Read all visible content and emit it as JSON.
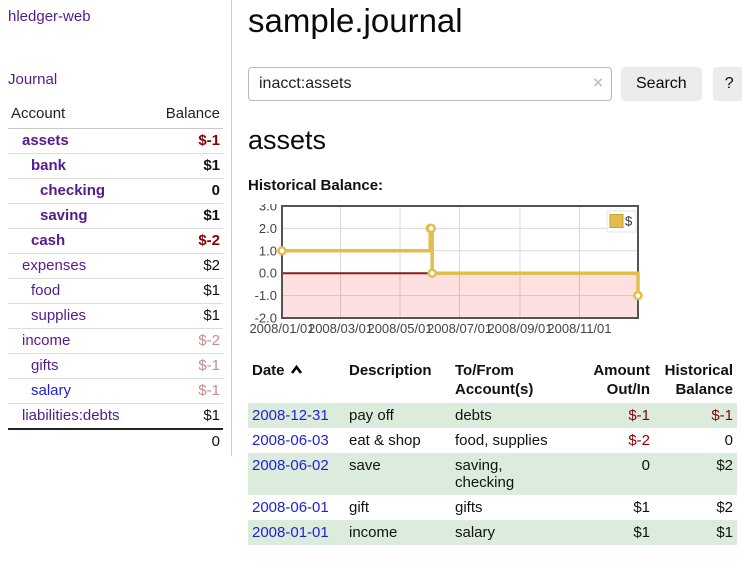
{
  "colors": {
    "link_purple": "#551a8b",
    "link_blue": "#1f1fd4",
    "negative_strong": "#8b0000",
    "negative_soft": "#c98b8b",
    "row_green": "#dcecdc"
  },
  "sidebar": {
    "brand": "hledger-web",
    "nav_journal": "Journal",
    "accounts_table": {
      "headers": {
        "account": "Account",
        "balance": "Balance"
      },
      "rows": [
        {
          "name": "assets",
          "level": 0,
          "bold": true,
          "name_color": "purple",
          "balance": "$-1",
          "balance_color": "strong-negative"
        },
        {
          "name": "bank",
          "level": 1,
          "bold": true,
          "name_color": "purple",
          "balance": "$1",
          "balance_color": "default"
        },
        {
          "name": "checking",
          "level": 2,
          "bold": true,
          "name_color": "purple",
          "balance": "0",
          "balance_color": "default"
        },
        {
          "name": "saving",
          "level": 2,
          "bold": true,
          "name_color": "purple",
          "balance": "$1",
          "balance_color": "default"
        },
        {
          "name": "cash",
          "level": 1,
          "bold": true,
          "name_color": "purple",
          "balance": "$-2",
          "balance_color": "strong-negative"
        },
        {
          "name": "expenses",
          "level": 0,
          "bold": false,
          "name_color": "purple",
          "balance": "$2",
          "balance_color": "default"
        },
        {
          "name": "food",
          "level": 1,
          "bold": false,
          "name_color": "purple",
          "balance": "$1",
          "balance_color": "default"
        },
        {
          "name": "supplies",
          "level": 1,
          "bold": false,
          "name_color": "purple",
          "balance": "$1",
          "balance_color": "default"
        },
        {
          "name": "income",
          "level": 0,
          "bold": false,
          "name_color": "purple",
          "balance": "$-2",
          "balance_color": "soft-negative"
        },
        {
          "name": "gifts",
          "level": 1,
          "bold": false,
          "name_color": "purple",
          "balance": "$-1",
          "balance_color": "soft-negative"
        },
        {
          "name": "salary",
          "level": 1,
          "bold": false,
          "name_color": "blue",
          "balance": "$-1",
          "balance_color": "soft-negative"
        },
        {
          "name": "liabilities:debts",
          "level": 0,
          "bold": false,
          "name_color": "purple",
          "balance": "$1",
          "balance_color": "default"
        }
      ],
      "total": "0"
    }
  },
  "main": {
    "title": "sample.journal",
    "search": {
      "query": "inacct:assets",
      "clear_icon": "×",
      "search_button": "Search",
      "help_button": "?"
    },
    "account_heading": "assets",
    "chart_label": "Historical Balance:",
    "register_table": {
      "headers": {
        "date": "Date",
        "description": "Description",
        "accounts": "To/From Account(s)",
        "amount": "Amount Out/In",
        "balance": "Historical Balance"
      },
      "rows": [
        {
          "date": "2008-12-31",
          "description": "pay off",
          "accounts": "debts",
          "amount": "$-1",
          "balance": "$-1",
          "shaded": true
        },
        {
          "date": "2008-06-03",
          "description": "eat & shop",
          "accounts": "food, supplies",
          "amount": "$-2",
          "balance": "0",
          "shaded": false
        },
        {
          "date": "2008-06-02",
          "description": "save",
          "accounts": "saving,\nchecking",
          "amount": "0",
          "balance": "$2",
          "shaded": true
        },
        {
          "date": "2008-06-01",
          "description": "gift",
          "accounts": "gifts",
          "amount": "$1",
          "balance": "$2",
          "shaded": false
        },
        {
          "date": "2008-01-01",
          "description": "income",
          "accounts": "salary",
          "amount": "$1",
          "balance": "$1",
          "shaded": true
        }
      ]
    }
  },
  "chart_data": {
    "type": "line",
    "step": true,
    "title": "Historical Balance",
    "series": [
      {
        "name": "$",
        "color": "#e3bd4d",
        "points": [
          [
            "2008-01-01",
            1
          ],
          [
            "2008-06-01",
            2
          ],
          [
            "2008-06-02",
            2
          ],
          [
            "2008-06-03",
            0
          ],
          [
            "2008-12-31",
            -1
          ]
        ]
      }
    ],
    "x_range": [
      "2008-01-01",
      "2008-12-31"
    ],
    "ylim": [
      -2,
      3
    ],
    "y_ticks": [
      {
        "v": 3,
        "label": "3.0"
      },
      {
        "v": 2,
        "label": "2.0"
      },
      {
        "v": 1,
        "label": "1.0"
      },
      {
        "v": 0,
        "label": "0.0"
      },
      {
        "v": -1,
        "label": "-1.0"
      },
      {
        "v": -2,
        "label": "-2.0"
      }
    ],
    "x_ticks": [
      {
        "date": "2008-01-01",
        "label": "2008/01/01"
      },
      {
        "date": "2008-03-01",
        "label": "2008/03/01"
      },
      {
        "date": "2008-05-01",
        "label": "2008/05/01"
      },
      {
        "date": "2008-07-01",
        "label": "2008/07/01"
      },
      {
        "date": "2008-09-01",
        "label": "2008/09/01"
      },
      {
        "date": "2008-11-01",
        "label": "2008/11/01"
      }
    ],
    "legend": {
      "label": "$",
      "position": "top-right"
    },
    "shade_below_zero": true,
    "grid": true,
    "colors": {
      "grid": "#d8d8d8",
      "border": "#545454",
      "zero_line": "#8b1a1a",
      "below_zero_fill": "rgba(255,0,0,0.12)",
      "legend_box_border": "#c9a227",
      "tick_text": "#444444"
    }
  }
}
